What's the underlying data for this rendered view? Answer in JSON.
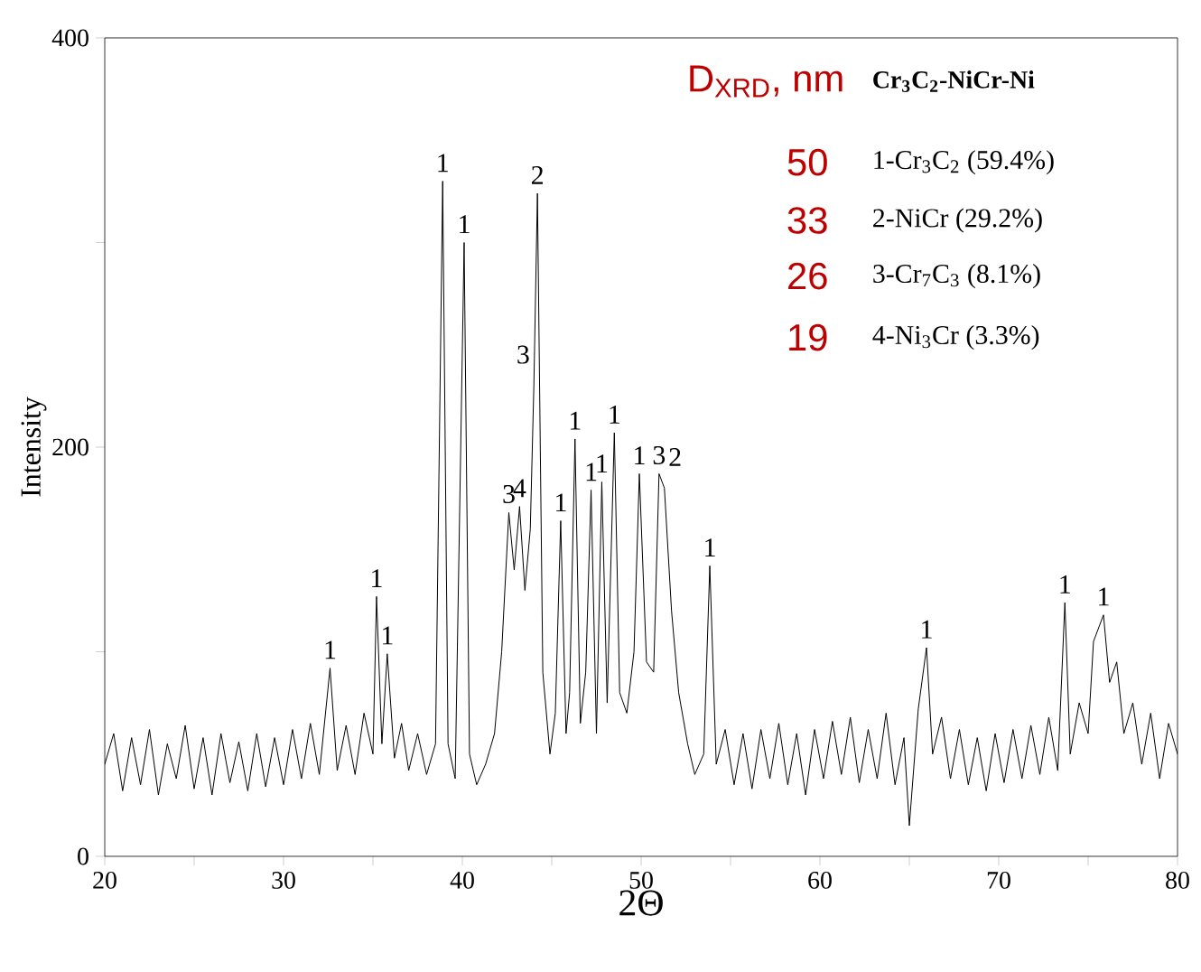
{
  "chart_data": {
    "type": "line",
    "xlabel": "2Θ",
    "ylabel": "Intensity",
    "xlim": [
      20,
      80
    ],
    "ylim": [
      0,
      400
    ],
    "xticks": [
      20,
      {
        "value": 25,
        "label": null
      },
      30,
      {
        "value": 35,
        "label": null
      },
      40,
      {
        "value": 45,
        "label": null
      },
      50,
      {
        "value": 55,
        "label": null
      },
      60,
      {
        "value": 65,
        "label": null
      },
      70,
      {
        "value": 75,
        "label": null
      },
      80
    ],
    "yticks": [
      0,
      {
        "value": 100,
        "label": null
      },
      200,
      {
        "value": 300,
        "label": null
      },
      400
    ],
    "grid": false,
    "marker": "none",
    "line_style": "solid",
    "series": [
      {
        "color": "#000000",
        "x": [
          20,
          20.5,
          21,
          21.5,
          22,
          22.5,
          23,
          23.5,
          24,
          24.5,
          25,
          25.5,
          26,
          26.5,
          27,
          27.5,
          28,
          28.5,
          29,
          29.5,
          30,
          30.5,
          31,
          31.5,
          32,
          32.6,
          33,
          33.5,
          34,
          34.5,
          35,
          35.2,
          35.5,
          35.8,
          36.2,
          36.6,
          37,
          37.5,
          38,
          38.5,
          38.9,
          39.2,
          39.6,
          40.1,
          40.4,
          40.8,
          41.3,
          41.8,
          42.2,
          42.6,
          42.9,
          43.2,
          43.5,
          43.8,
          44.0,
          44.2,
          44.5,
          44.9,
          45.2,
          45.5,
          45.8,
          46.0,
          46.3,
          46.6,
          46.9,
          47.2,
          47.5,
          47.8,
          48.1,
          48.5,
          48.8,
          49.2,
          49.6,
          49.9,
          50.3,
          50.7,
          51.0,
          51.3,
          51.7,
          52.1,
          52.6,
          53.0,
          53.5,
          53.84,
          54.2,
          54.7,
          55.2,
          55.7,
          56.2,
          56.7,
          57.2,
          57.7,
          58.2,
          58.7,
          59.2,
          59.7,
          60.2,
          60.7,
          61.2,
          61.7,
          62.2,
          62.7,
          63.2,
          63.7,
          64.2,
          64.7,
          65.0,
          65.5,
          65.96,
          66.3,
          66.8,
          67.3,
          67.8,
          68.3,
          68.8,
          69.3,
          69.8,
          70.3,
          70.8,
          71.3,
          71.8,
          72.3,
          72.8,
          73.3,
          73.7,
          74.0,
          74.5,
          75.0,
          75.3,
          75.86,
          76.2,
          76.6,
          77.0,
          77.5,
          78.0,
          78.5,
          79.0,
          79.5,
          80
        ],
        "values": [
          45,
          60,
          32,
          58,
          35,
          62,
          30,
          55,
          38,
          64,
          33,
          58,
          30,
          60,
          36,
          56,
          32,
          60,
          34,
          58,
          35,
          62,
          38,
          65,
          40,
          92,
          42,
          64,
          40,
          70,
          50,
          127,
          55,
          99,
          48,
          65,
          42,
          60,
          40,
          55,
          330,
          55,
          38,
          300,
          50,
          35,
          45,
          60,
          100,
          168,
          140,
          171,
          130,
          160,
          230,
          324,
          90,
          50,
          70,
          164,
          60,
          80,
          204,
          65,
          90,
          179,
          60,
          183,
          75,
          207,
          80,
          70,
          100,
          187,
          95,
          90,
          187,
          180,
          120,
          80,
          55,
          40,
          50,
          142,
          45,
          62,
          35,
          60,
          33,
          62,
          38,
          65,
          35,
          60,
          30,
          62,
          38,
          66,
          40,
          68,
          36,
          62,
          38,
          70,
          35,
          58,
          15,
          72,
          102,
          50,
          68,
          38,
          62,
          35,
          58,
          32,
          60,
          36,
          62,
          38,
          64,
          40,
          68,
          42,
          124,
          50,
          75,
          60,
          105,
          118,
          85,
          95,
          60,
          75,
          45,
          70,
          38,
          65,
          50
        ]
      }
    ],
    "annotations": [
      {
        "text": "1",
        "x": 32.6,
        "y": 92
      },
      {
        "text": "1",
        "x": 35.2,
        "y": 127
      },
      {
        "text": "1",
        "x": 35.8,
        "y": 99
      },
      {
        "text": "1",
        "x": 38.9,
        "y": 330
      },
      {
        "text": "1",
        "x": 40.1,
        "y": 300
      },
      {
        "text": "2",
        "x": 44.2,
        "y": 324
      },
      {
        "text": "3",
        "x": 44.0,
        "y": 230
      },
      {
        "text": "3",
        "x": 42.6,
        "y": 168
      },
      {
        "text": "4",
        "x": 43.2,
        "y": 171
      },
      {
        "text": "1",
        "x": 45.5,
        "y": 164
      },
      {
        "text": "1",
        "x": 46.3,
        "y": 204
      },
      {
        "text": "1",
        "x": 47.2,
        "y": 179
      },
      {
        "text": "1",
        "x": 47.8,
        "y": 183
      },
      {
        "text": "1",
        "x": 48.5,
        "y": 207
      },
      {
        "text": "1",
        "x": 49.9,
        "y": 187
      },
      {
        "text": "3",
        "x": 51.0,
        "y": 187
      },
      {
        "text": "2",
        "x": 51.3,
        "y": 180
      },
      {
        "text": "1",
        "x": 53.84,
        "y": 142
      },
      {
        "text": "1",
        "x": 65.96,
        "y": 102
      },
      {
        "text": "1",
        "x": 73.7,
        "y": 124
      },
      {
        "text": "1",
        "x": 75.86,
        "y": 118
      },
      "D$_{XRD}$, nm",
      "Cr$_{3}$C$_{2}$-NiCr-Ni",
      "50",
      "1-Cr$_{3}$C$_{2}$ (59.4%)",
      "33",
      "2-NiCr (29.2%)",
      "26",
      "3-Cr$_{7}$C$_{3}$ (8.1%)",
      "19",
      "4-Ni$_{3}$Cr (3.3%)"
    ]
  }
}
